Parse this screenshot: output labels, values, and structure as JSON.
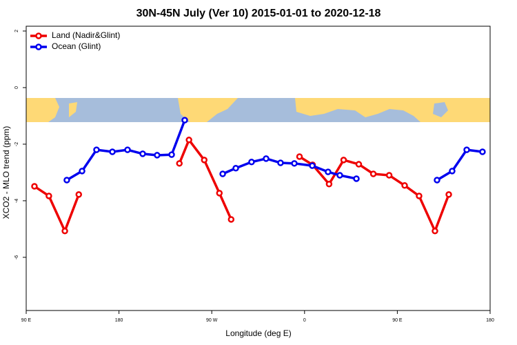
{
  "chart_data": {
    "type": "line",
    "title": "30N-45N July (Ver 10)   2015-01-01 to 2020-12-18",
    "x_label": "Longitude (deg E)",
    "y_label": "XCO2 - MLO trend (ppm)",
    "xlim": [
      90,
      540
    ],
    "ylim": [
      -7.88,
      2.17
    ],
    "xticks": [
      {
        "value": 90,
        "label": "90 E"
      },
      {
        "value": 180,
        "label": "180"
      },
      {
        "value": 270,
        "label": "90 W"
      },
      {
        "value": 360,
        "label": "0"
      },
      {
        "value": 450,
        "label": "90 E"
      },
      {
        "value": 540,
        "label": "180"
      }
    ],
    "yticks": [
      2,
      0,
      -2,
      -4,
      -6
    ],
    "legend": "top-left",
    "series": [
      {
        "name": "Land (Nadir&Glint)",
        "color": "#ee0000",
        "x": [
          98,
          112,
          127.5,
          141,
          null,
          238.6,
          247.9,
          262.7,
          277.4,
          288.8,
          null,
          355.1,
          367.8,
          383.8,
          397.9,
          412.6,
          426.7,
          442.1,
          457.1,
          471.1,
          486.5,
          499.9
        ],
        "values": [
          -3.49,
          -3.83,
          -5.07,
          -3.78,
          null,
          -2.68,
          -1.85,
          -2.56,
          -3.73,
          -4.66,
          null,
          -2.44,
          -2.73,
          -3.41,
          -2.56,
          -2.71,
          -3.05,
          -3.1,
          -3.46,
          -3.83,
          -5.07,
          -3.78
        ]
      },
      {
        "name": "Ocean (Glint)",
        "color": "#0000ee",
        "x": [
          129.4,
          144.2,
          158.2,
          173.6,
          188.3,
          203,
          217,
          231.1,
          243.8,
          null,
          280.6,
          293.3,
          308.6,
          322.7,
          336.7,
          350.1,
          367.5,
          382.8,
          394.2,
          410.3,
          null,
          488.5,
          503.2,
          517.3,
          532.6
        ],
        "values": [
          -3.27,
          -2.95,
          -2.2,
          -2.27,
          -2.2,
          -2.34,
          -2.39,
          -2.37,
          -1.15,
          null,
          -3.05,
          -2.85,
          -2.63,
          -2.51,
          -2.66,
          -2.68,
          -2.76,
          -2.98,
          -3.1,
          -3.22,
          null,
          -3.27,
          -2.95,
          -2.2,
          -2.27
        ]
      }
    ]
  }
}
